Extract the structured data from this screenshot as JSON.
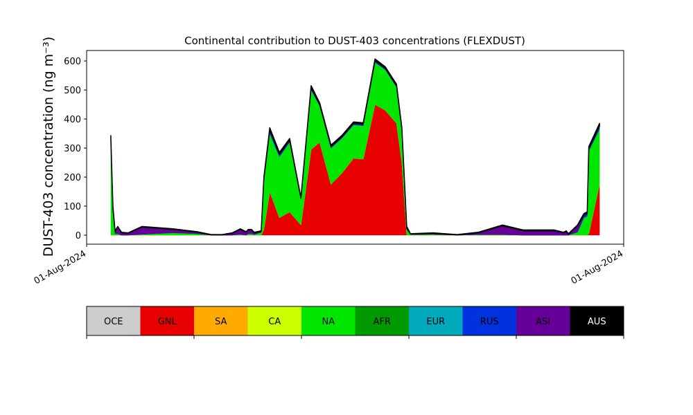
{
  "chart_data": {
    "type": "stacked-area",
    "title": "Continental contribution to DUST-403 concentrations (FLEXDUST)",
    "y_label": "DUST-403 concentration (ng m⁻³)",
    "x": [
      4.5,
      4.9,
      5.3,
      5.8,
      6.5,
      7.7,
      10.3,
      16.1,
      20.6,
      23.2,
      25.2,
      27.1,
      28.6,
      29.7,
      30.1,
      30.7,
      31.2,
      32.5,
      33.0,
      34.1,
      35.9,
      37.8,
      39.9,
      41.8,
      43.4,
      45.5,
      47.6,
      49.7,
      51.5,
      53.7,
      55.6,
      57.7,
      58.7,
      59.6,
      60.3,
      64.5,
      69.0,
      72.9,
      77.4,
      81.3,
      87.1,
      88.8,
      89.3,
      89.7,
      91.4,
      92.6,
      93.2,
      93.5,
      95.5
    ],
    "xlim": [
      0,
      100
    ],
    "xticks": [
      {
        "value": 0,
        "label": "01-Aug-2024"
      },
      {
        "value": 100,
        "label": "01-Aug-2024"
      }
    ],
    "ylim": [
      -31,
      636
    ],
    "yticks": [
      0,
      100,
      200,
      300,
      400,
      500,
      600
    ],
    "series": [
      {
        "name": "OCE",
        "color": "#cccccc",
        "values": [
          0,
          0,
          0,
          0,
          0,
          0,
          0,
          0,
          0,
          0,
          0,
          0,
          0,
          0,
          0,
          0,
          0,
          0,
          0,
          0,
          0,
          0,
          0,
          0,
          0,
          0,
          0,
          0,
          0,
          0,
          0,
          0,
          0,
          0,
          0,
          0,
          0,
          0,
          0,
          0,
          0,
          0,
          0,
          0,
          0,
          0,
          0,
          0,
          0
        ]
      },
      {
        "name": "GNL",
        "color": "#e60000",
        "values": [
          0,
          0,
          0,
          0,
          0,
          0,
          0,
          0,
          0,
          0,
          0,
          0,
          0,
          0,
          0,
          0,
          0,
          0,
          20,
          150,
          60,
          80,
          35,
          295,
          320,
          175,
          215,
          265,
          262,
          450,
          430,
          385,
          250,
          0,
          0,
          0,
          0,
          0,
          0,
          0,
          0,
          0,
          0,
          0,
          0,
          0,
          0,
          5,
          175
        ]
      },
      {
        "name": "SA",
        "color": "#ffaa00",
        "values": [
          0,
          0,
          0,
          0,
          0,
          0,
          0,
          0,
          0,
          0,
          0,
          0,
          0,
          0,
          0,
          0,
          0,
          0,
          0,
          0,
          0,
          0,
          0,
          0,
          0,
          0,
          0,
          0,
          0,
          0,
          0,
          0,
          0,
          0,
          0,
          0,
          0,
          0,
          0,
          0,
          0,
          0,
          0,
          0,
          0,
          0,
          0,
          0,
          0
        ]
      },
      {
        "name": "CA",
        "color": "#ccff00",
        "values": [
          0,
          0,
          0,
          0,
          0,
          0,
          0,
          0,
          0,
          0,
          0,
          0,
          0,
          0,
          0,
          0,
          0,
          0,
          0,
          0,
          0,
          0,
          0,
          0,
          0,
          0,
          0,
          0,
          0,
          0,
          0,
          0,
          0,
          0,
          0,
          0,
          0,
          0,
          0,
          0,
          0,
          0,
          0,
          0,
          0,
          0,
          0,
          0,
          0
        ]
      },
      {
        "name": "NA",
        "color": "#00e600",
        "values": [
          320,
          80,
          5,
          5,
          0,
          0,
          3,
          8,
          5,
          0,
          0,
          0,
          3,
          0,
          5,
          5,
          2,
          10,
          165,
          200,
          210,
          240,
          90,
          205,
          125,
          125,
          120,
          115,
          115,
          145,
          140,
          125,
          110,
          20,
          2,
          3,
          0,
          2,
          2,
          0,
          0,
          0,
          0,
          0,
          10,
          60,
          65,
          285,
          190
        ]
      },
      {
        "name": "AFR",
        "color": "#009900",
        "values": [
          0,
          0,
          0,
          0,
          0,
          0,
          0,
          0,
          0,
          0,
          0,
          0,
          0,
          0,
          0,
          0,
          0,
          0,
          0,
          0,
          0,
          0,
          0,
          0,
          0,
          0,
          0,
          0,
          0,
          0,
          0,
          0,
          0,
          0,
          0,
          0,
          0,
          0,
          0,
          0,
          0,
          0,
          0,
          0,
          0,
          0,
          0,
          0,
          0
        ]
      },
      {
        "name": "EUR",
        "color": "#00aabb",
        "values": [
          0,
          0,
          0,
          0,
          0,
          0,
          0,
          0,
          0,
          0,
          0,
          0,
          0,
          0,
          0,
          0,
          0,
          0,
          0,
          0,
          0,
          0,
          0,
          0,
          0,
          0,
          0,
          0,
          0,
          0,
          0,
          0,
          0,
          0,
          0,
          0,
          0,
          0,
          0,
          0,
          0,
          0,
          0,
          0,
          0,
          0,
          0,
          0,
          0
        ]
      },
      {
        "name": "RUS",
        "color": "#0033dd",
        "values": [
          5,
          2,
          0,
          0,
          0,
          0,
          0,
          0,
          0,
          0,
          0,
          0,
          0,
          0,
          0,
          0,
          0,
          0,
          8,
          10,
          8,
          7,
          2,
          8,
          5,
          5,
          5,
          5,
          5,
          6,
          5,
          5,
          5,
          0,
          0,
          0,
          0,
          0,
          0,
          0,
          0,
          0,
          0,
          0,
          2,
          5,
          5,
          8,
          10
        ]
      },
      {
        "name": "ASI",
        "color": "#660099",
        "values": [
          8,
          10,
          8,
          22,
          8,
          6,
          25,
          12,
          5,
          1,
          1,
          6,
          17,
          10,
          13,
          13,
          6,
          3,
          2,
          2,
          0,
          0,
          0,
          0,
          0,
          0,
          0,
          0,
          0,
          0,
          0,
          0,
          0,
          5,
          2,
          3,
          1,
          6,
          30,
          15,
          15,
          8,
          12,
          3,
          20,
          5,
          5,
          0,
          0
        ]
      },
      {
        "name": "AUS",
        "color": "#000000",
        "values": [
          10,
          8,
          2,
          3,
          2,
          2,
          2,
          2,
          2,
          1,
          1,
          2,
          2,
          2,
          2,
          2,
          2,
          2,
          5,
          8,
          7,
          6,
          3,
          7,
          5,
          5,
          5,
          5,
          5,
          6,
          5,
          5,
          5,
          5,
          1,
          2,
          1,
          2,
          3,
          3,
          3,
          2,
          3,
          2,
          3,
          5,
          5,
          7,
          10
        ]
      }
    ]
  }
}
